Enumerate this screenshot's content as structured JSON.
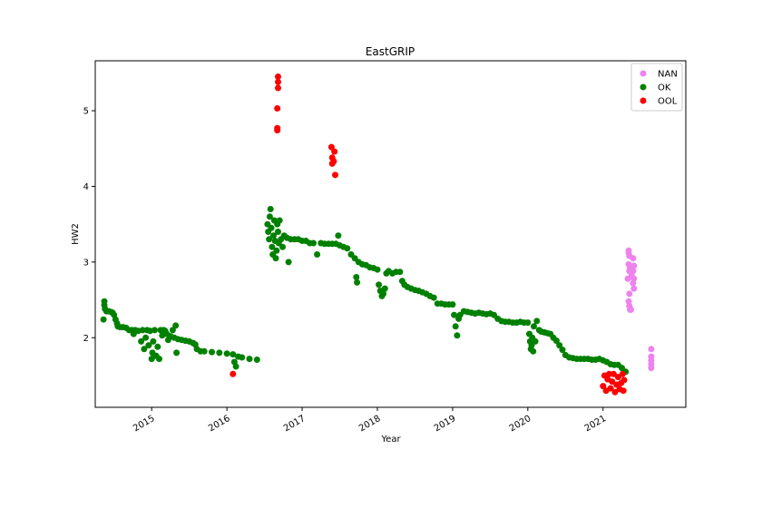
{
  "chart_data": {
    "type": "scatter",
    "title": "EastGRIP",
    "xlabel": "Year",
    "ylabel": "HW2",
    "x_ticks": [
      "2015",
      "2016",
      "2017",
      "2018",
      "2019",
      "2020",
      "2021"
    ],
    "y_ticks": [
      "2",
      "3",
      "4",
      "5"
    ],
    "xlim": [
      2014.25,
      2022.1
    ],
    "ylim": [
      1.08,
      5.66
    ],
    "grid": false,
    "legend_position": "top-right",
    "series": [
      {
        "name": "NAN",
        "color": "#ee82ee",
        "points": [
          [
            2021.34,
            3.15
          ],
          [
            2021.34,
            3.12
          ],
          [
            2021.35,
            3.08
          ],
          [
            2021.34,
            2.97
          ],
          [
            2021.36,
            2.92
          ],
          [
            2021.35,
            2.88
          ],
          [
            2021.38,
            2.82
          ],
          [
            2021.4,
            3.05
          ],
          [
            2021.41,
            2.95
          ],
          [
            2021.4,
            2.88
          ],
          [
            2021.41,
            2.78
          ],
          [
            2021.4,
            2.72
          ],
          [
            2021.41,
            2.65
          ],
          [
            2021.33,
            2.78
          ],
          [
            2021.35,
            2.58
          ],
          [
            2021.34,
            2.48
          ],
          [
            2021.35,
            2.42
          ],
          [
            2021.36,
            2.37
          ],
          [
            2021.37,
            2.37
          ],
          [
            2021.64,
            1.85
          ],
          [
            2021.64,
            1.75
          ],
          [
            2021.64,
            1.7
          ],
          [
            2021.64,
            1.65
          ],
          [
            2021.64,
            1.6
          ]
        ]
      },
      {
        "name": "OK",
        "color": "#008000",
        "points": [
          [
            2014.37,
            2.48
          ],
          [
            2014.37,
            2.43
          ],
          [
            2014.38,
            2.38
          ],
          [
            2014.36,
            2.24
          ],
          [
            2014.4,
            2.35
          ],
          [
            2014.43,
            2.35
          ],
          [
            2014.46,
            2.34
          ],
          [
            2014.48,
            2.33
          ],
          [
            2014.5,
            2.3
          ],
          [
            2014.52,
            2.24
          ],
          [
            2014.54,
            2.19
          ],
          [
            2014.55,
            2.15
          ],
          [
            2014.58,
            2.14
          ],
          [
            2014.62,
            2.14
          ],
          [
            2014.66,
            2.13
          ],
          [
            2014.7,
            2.1
          ],
          [
            2014.74,
            2.1
          ],
          [
            2014.76,
            2.05
          ],
          [
            2014.78,
            2.1
          ],
          [
            2014.82,
            2.09
          ],
          [
            2014.86,
            1.95
          ],
          [
            2014.88,
            2.1
          ],
          [
            2014.9,
            1.85
          ],
          [
            2014.92,
            2.0
          ],
          [
            2014.94,
            2.1
          ],
          [
            2014.96,
            1.9
          ],
          [
            2014.98,
            2.09
          ],
          [
            2015.0,
            1.72
          ],
          [
            2015.01,
            1.8
          ],
          [
            2015.02,
            1.95
          ],
          [
            2015.04,
            2.1
          ],
          [
            2015.06,
            1.76
          ],
          [
            2015.08,
            1.88
          ],
          [
            2015.1,
            1.72
          ],
          [
            2015.12,
            2.1
          ],
          [
            2015.14,
            2.03
          ],
          [
            2015.16,
            2.1
          ],
          [
            2015.18,
            2.09
          ],
          [
            2015.2,
            2.05
          ],
          [
            2015.22,
            1.97
          ],
          [
            2015.25,
            2.02
          ],
          [
            2015.28,
            2.1
          ],
          [
            2015.3,
            2.0
          ],
          [
            2015.32,
            2.16
          ],
          [
            2015.33,
            1.8
          ],
          [
            2015.35,
            1.98
          ],
          [
            2015.4,
            1.97
          ],
          [
            2015.45,
            1.96
          ],
          [
            2015.5,
            1.95
          ],
          [
            2015.55,
            1.93
          ],
          [
            2015.58,
            1.91
          ],
          [
            2015.6,
            1.85
          ],
          [
            2015.65,
            1.82
          ],
          [
            2015.7,
            1.82
          ],
          [
            2015.8,
            1.81
          ],
          [
            2015.9,
            1.8
          ],
          [
            2016.0,
            1.79
          ],
          [
            2016.08,
            1.78
          ],
          [
            2016.1,
            1.68
          ],
          [
            2016.12,
            1.62
          ],
          [
            2016.15,
            1.75
          ],
          [
            2016.2,
            1.74
          ],
          [
            2016.3,
            1.72
          ],
          [
            2016.4,
            1.71
          ],
          [
            2016.54,
            3.5
          ],
          [
            2016.55,
            3.4
          ],
          [
            2016.56,
            3.3
          ],
          [
            2016.57,
            3.6
          ],
          [
            2016.58,
            3.7
          ],
          [
            2016.59,
            3.45
          ],
          [
            2016.6,
            3.2
          ],
          [
            2016.61,
            3.1
          ],
          [
            2016.62,
            3.35
          ],
          [
            2016.63,
            3.55
          ],
          [
            2016.64,
            3.28
          ],
          [
            2016.65,
            3.05
          ],
          [
            2016.66,
            3.15
          ],
          [
            2016.67,
            3.5
          ],
          [
            2016.68,
            3.4
          ],
          [
            2016.69,
            3.25
          ],
          [
            2016.7,
            3.55
          ],
          [
            2016.72,
            3.3
          ],
          [
            2016.74,
            3.2
          ],
          [
            2016.76,
            3.35
          ],
          [
            2016.8,
            3.32
          ],
          [
            2016.82,
            3.0
          ],
          [
            2016.85,
            3.3
          ],
          [
            2016.9,
            3.3
          ],
          [
            2016.95,
            3.3
          ],
          [
            2017.0,
            3.28
          ],
          [
            2017.05,
            3.28
          ],
          [
            2017.1,
            3.25
          ],
          [
            2017.15,
            3.25
          ],
          [
            2017.2,
            3.1
          ],
          [
            2017.25,
            3.25
          ],
          [
            2017.3,
            3.24
          ],
          [
            2017.35,
            3.24
          ],
          [
            2017.4,
            3.24
          ],
          [
            2017.45,
            3.24
          ],
          [
            2017.48,
            3.35
          ],
          [
            2017.5,
            3.22
          ],
          [
            2017.55,
            3.2
          ],
          [
            2017.6,
            3.18
          ],
          [
            2017.65,
            3.1
          ],
          [
            2017.7,
            3.05
          ],
          [
            2017.72,
            2.8
          ],
          [
            2017.73,
            2.73
          ],
          [
            2017.75,
            3.0
          ],
          [
            2017.8,
            2.97
          ],
          [
            2017.85,
            2.96
          ],
          [
            2017.9,
            2.93
          ],
          [
            2017.95,
            2.92
          ],
          [
            2018.0,
            2.9
          ],
          [
            2018.02,
            2.7
          ],
          [
            2018.04,
            2.62
          ],
          [
            2018.06,
            2.55
          ],
          [
            2018.08,
            2.58
          ],
          [
            2018.1,
            2.65
          ],
          [
            2018.12,
            2.85
          ],
          [
            2018.15,
            2.88
          ],
          [
            2018.2,
            2.85
          ],
          [
            2018.25,
            2.87
          ],
          [
            2018.3,
            2.87
          ],
          [
            2018.33,
            2.75
          ],
          [
            2018.36,
            2.7
          ],
          [
            2018.4,
            2.67
          ],
          [
            2018.45,
            2.65
          ],
          [
            2018.5,
            2.63
          ],
          [
            2018.55,
            2.62
          ],
          [
            2018.6,
            2.6
          ],
          [
            2018.65,
            2.58
          ],
          [
            2018.7,
            2.55
          ],
          [
            2018.75,
            2.53
          ],
          [
            2018.8,
            2.45
          ],
          [
            2018.85,
            2.45
          ],
          [
            2018.9,
            2.44
          ],
          [
            2018.95,
            2.44
          ],
          [
            2019.0,
            2.44
          ],
          [
            2019.02,
            2.3
          ],
          [
            2019.04,
            2.15
          ],
          [
            2019.06,
            2.03
          ],
          [
            2019.08,
            2.25
          ],
          [
            2019.1,
            2.3
          ],
          [
            2019.15,
            2.35
          ],
          [
            2019.2,
            2.34
          ],
          [
            2019.25,
            2.33
          ],
          [
            2019.3,
            2.32
          ],
          [
            2019.35,
            2.33
          ],
          [
            2019.4,
            2.32
          ],
          [
            2019.45,
            2.31
          ],
          [
            2019.5,
            2.32
          ],
          [
            2019.55,
            2.3
          ],
          [
            2019.6,
            2.25
          ],
          [
            2019.65,
            2.22
          ],
          [
            2019.7,
            2.21
          ],
          [
            2019.75,
            2.21
          ],
          [
            2019.8,
            2.2
          ],
          [
            2019.85,
            2.2
          ],
          [
            2019.9,
            2.21
          ],
          [
            2019.95,
            2.2
          ],
          [
            2020.0,
            2.2
          ],
          [
            2020.02,
            2.05
          ],
          [
            2020.03,
            1.95
          ],
          [
            2020.04,
            1.85
          ],
          [
            2020.05,
            1.9
          ],
          [
            2020.06,
            2.0
          ],
          [
            2020.07,
            1.82
          ],
          [
            2020.08,
            2.15
          ],
          [
            2020.1,
            1.95
          ],
          [
            2020.12,
            2.22
          ],
          [
            2020.15,
            2.1
          ],
          [
            2020.18,
            2.08
          ],
          [
            2020.22,
            2.07
          ],
          [
            2020.26,
            2.06
          ],
          [
            2020.3,
            2.05
          ],
          [
            2020.34,
            2.0
          ],
          [
            2020.38,
            1.96
          ],
          [
            2020.42,
            1.9
          ],
          [
            2020.46,
            1.84
          ],
          [
            2020.5,
            1.77
          ],
          [
            2020.55,
            1.74
          ],
          [
            2020.6,
            1.73
          ],
          [
            2020.65,
            1.72
          ],
          [
            2020.7,
            1.72
          ],
          [
            2020.75,
            1.72
          ],
          [
            2020.8,
            1.72
          ],
          [
            2020.85,
            1.71
          ],
          [
            2020.9,
            1.71
          ],
          [
            2020.95,
            1.72
          ],
          [
            2021.0,
            1.7
          ],
          [
            2021.05,
            1.68
          ],
          [
            2021.1,
            1.65
          ],
          [
            2021.15,
            1.64
          ],
          [
            2021.2,
            1.64
          ],
          [
            2021.25,
            1.6
          ],
          [
            2021.3,
            1.55
          ]
        ]
      },
      {
        "name": "OOL",
        "color": "#ff0000",
        "points": [
          [
            2016.08,
            1.52
          ],
          [
            2016.68,
            5.45
          ],
          [
            2016.68,
            5.38
          ],
          [
            2016.68,
            5.3
          ],
          [
            2016.67,
            5.03
          ],
          [
            2016.67,
            4.77
          ],
          [
            2016.67,
            4.74
          ],
          [
            2017.39,
            4.52
          ],
          [
            2017.4,
            4.38
          ],
          [
            2017.4,
            4.3
          ],
          [
            2017.42,
            4.33
          ],
          [
            2017.43,
            4.46
          ],
          [
            2017.44,
            4.15
          ],
          [
            2021.0,
            1.36
          ],
          [
            2021.02,
            1.5
          ],
          [
            2021.04,
            1.3
          ],
          [
            2021.06,
            1.45
          ],
          [
            2021.08,
            1.52
          ],
          [
            2021.1,
            1.33
          ],
          [
            2021.12,
            1.42
          ],
          [
            2021.14,
            1.52
          ],
          [
            2021.16,
            1.28
          ],
          [
            2021.18,
            1.38
          ],
          [
            2021.2,
            1.48
          ],
          [
            2021.22,
            1.32
          ],
          [
            2021.24,
            1.4
          ],
          [
            2021.26,
            1.52
          ],
          [
            2021.27,
            1.3
          ],
          [
            2021.28,
            1.44
          ]
        ]
      }
    ]
  }
}
